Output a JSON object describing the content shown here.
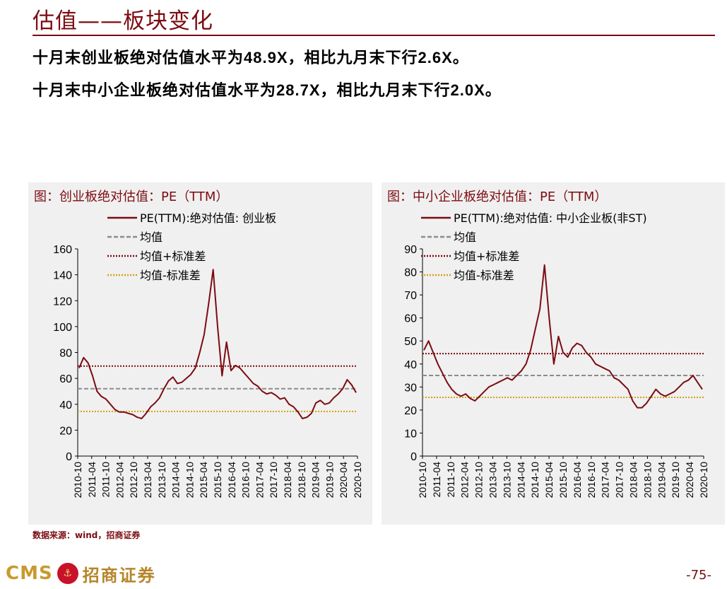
{
  "header": {
    "title": "估值——板块变化",
    "line1_a": "十月末创业板绝对估值水平为",
    "line1_b": "48.9X",
    "line1_c": "，相比九月末下行",
    "line1_d": "2.6X",
    "line1_e": "。",
    "line2_a": "十月末中小企业板绝对估值水平为",
    "line2_b": "28.7X",
    "line2_c": "，相比九月末下行",
    "line2_d": "2.0X",
    "line2_e": "。"
  },
  "colors": {
    "brand": "#7b0c12",
    "series": "#7b0c12",
    "mean": "#8c8c8c",
    "upper": "#7b0c12",
    "lower": "#d4a017"
  },
  "footer": {
    "source": "数据来源：wind，招商证券",
    "logo_text": "CMS",
    "logo_name": "招商证券",
    "page": "-75-"
  },
  "chart_data": [
    {
      "type": "line",
      "title": "图：创业板绝对估值：PE（TTM）",
      "ylim": [
        0,
        160
      ],
      "yticks": [
        0,
        20,
        40,
        60,
        80,
        100,
        120,
        140,
        160
      ],
      "xlabels": [
        "2010-10",
        "2011-04",
        "2011-10",
        "2012-04",
        "2012-10",
        "2013-04",
        "2013-10",
        "2014-04",
        "2014-10",
        "2015-04",
        "2015-10",
        "2016-04",
        "2016-10",
        "2017-04",
        "2017-10",
        "2018-04",
        "2018-10",
        "2019-04",
        "2019-10",
        "2020-04",
        "2020-10"
      ],
      "legend": [
        "PE(TTM):绝对估值: 创业板",
        "均值",
        "均值+标准差",
        "均值-标准差"
      ],
      "mean": 52,
      "upper": 69.5,
      "lower": 34.5,
      "series": [
        {
          "name": "PE(TTM):绝对估值: 创业板",
          "values": [
            68,
            76,
            72,
            62,
            50,
            46,
            44,
            40,
            36,
            34,
            34,
            33,
            32,
            30,
            29,
            33,
            38,
            41,
            45,
            52,
            58,
            61,
            56,
            57,
            60,
            63,
            68,
            80,
            94,
            118,
            144,
            100,
            62,
            88,
            66,
            70,
            68,
            64,
            60,
            56,
            54,
            50,
            48,
            49,
            47,
            44,
            45,
            40,
            38,
            34,
            29,
            30,
            33,
            41,
            43,
            40,
            41,
            45,
            48,
            52,
            59,
            55,
            49
          ]
        }
      ]
    },
    {
      "type": "line",
      "title": "图：中小企业板绝对估值：PE（TTM）",
      "ylim": [
        0,
        90
      ],
      "yticks": [
        0,
        10,
        20,
        30,
        40,
        50,
        60,
        70,
        80,
        90
      ],
      "xlabels": [
        "2010-10",
        "2011-04",
        "2011-10",
        "2012-04",
        "2012-10",
        "2013-04",
        "2013-10",
        "2014-04",
        "2014-10",
        "2015-04",
        "2015-10",
        "2016-04",
        "2016-10",
        "2017-04",
        "2017-10",
        "2018-04",
        "2018-10",
        "2019-04",
        "2019-10",
        "2020-04",
        "2020-10"
      ],
      "legend": [
        "PE(TTM):绝对估值: 中小企业板(非ST)",
        "均值",
        "均值+标准差",
        "均值-标准差"
      ],
      "mean": 35,
      "upper": 44.5,
      "lower": 25.5,
      "series": [
        {
          "name": "PE(TTM):绝对估值: 中小企业板(非ST)",
          "values": [
            46,
            50,
            45,
            40,
            36,
            32,
            29,
            27,
            26,
            27,
            25,
            24,
            26,
            28,
            30,
            31,
            32,
            33,
            34,
            33,
            35,
            37,
            40,
            46,
            55,
            64,
            83,
            60,
            40,
            52,
            45,
            43,
            47,
            49,
            48,
            45,
            43,
            40,
            39,
            38,
            37,
            34,
            33,
            31,
            29,
            24,
            21,
            21,
            23,
            26,
            29,
            27,
            26,
            27,
            28,
            30,
            32,
            33,
            35,
            32,
            29
          ]
        }
      ]
    }
  ]
}
